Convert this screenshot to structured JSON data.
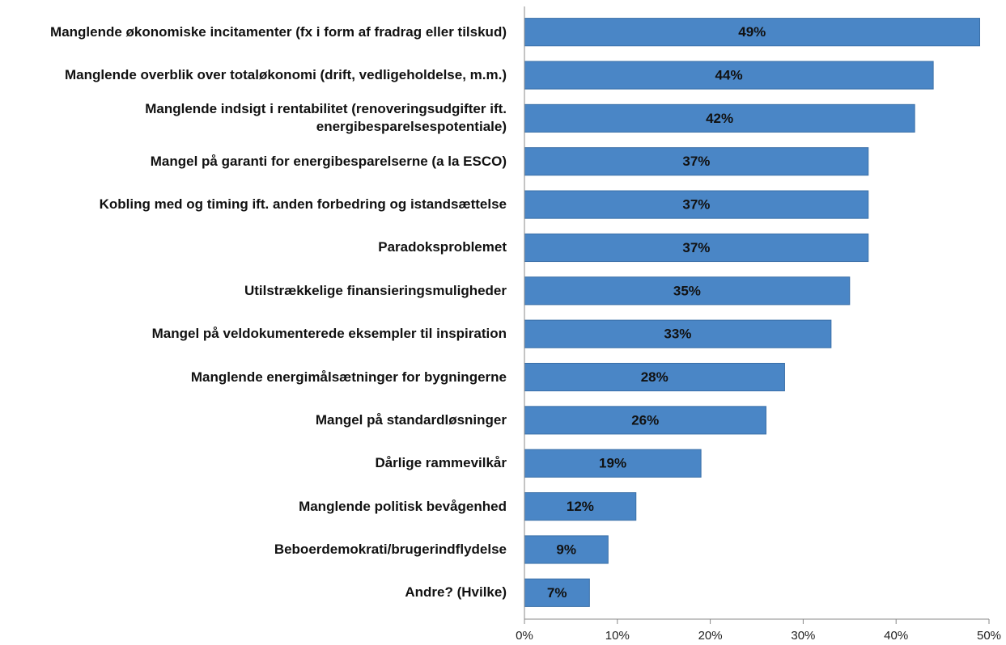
{
  "chart_data": {
    "type": "bar",
    "orientation": "horizontal",
    "categories": [
      "Manglende økonomiske incitamenter (fx i form af fradrag eller tilskud)",
      "Manglende overblik over totaløkonomi (drift, vedligeholdelse, m.m.)",
      "Manglende indsigt i rentabilitet (renoveringsudgifter ift. energibesparelsespotentiale)",
      "Mangel på garanti for energibesparelserne (a la ESCO)",
      "Kobling med og timing ift. anden forbedring og istandsættelse",
      "Paradoksproblemet",
      "Utilstrækkelige finansieringsmuligheder",
      "Mangel på veldokumenterede eksempler til inspiration",
      "Manglende energimålsætninger for bygningerne",
      "Mangel på standardløsninger",
      "Dårlige rammevilkår",
      "Manglende politisk bevågenhed",
      "Beboerdemokrati/brugerindflydelse",
      "Andre? (Hvilke)"
    ],
    "values": [
      49,
      44,
      42,
      37,
      37,
      37,
      35,
      33,
      28,
      26,
      19,
      12,
      9,
      7
    ],
    "value_labels": [
      "49%",
      "44%",
      "42%",
      "37%",
      "37%",
      "37%",
      "35%",
      "33%",
      "28%",
      "26%",
      "19%",
      "12%",
      "9%",
      "7%"
    ],
    "color": "#4a86c6",
    "xlim": [
      0,
      50
    ],
    "xticks": [
      {
        "value": 0,
        "label": "0%"
      },
      {
        "value": 10,
        "label": "10%"
      },
      {
        "value": 20,
        "label": "20%"
      },
      {
        "value": 30,
        "label": "30%"
      },
      {
        "value": 40,
        "label": "40%"
      },
      {
        "value": 50,
        "label": "50%"
      }
    ],
    "grid": false
  }
}
